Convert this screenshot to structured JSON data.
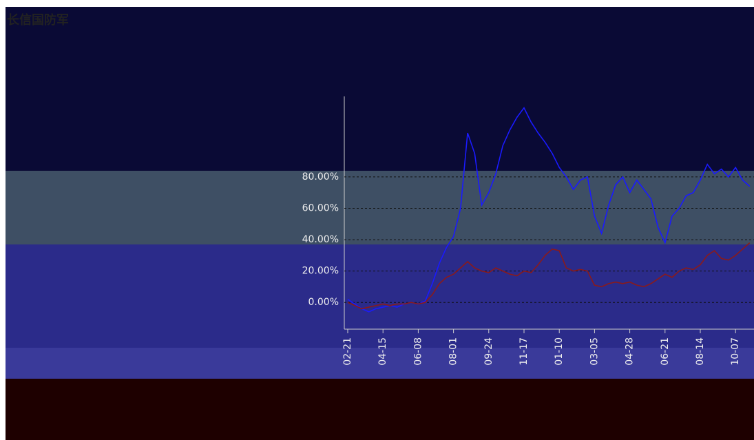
{
  "chart_data": {
    "type": "line",
    "title": "长信国防军",
    "categories": [
      "02-21",
      null,
      null,
      null,
      null,
      "04-15",
      null,
      null,
      null,
      null,
      "06-08",
      null,
      null,
      null,
      null,
      "08-01",
      null,
      null,
      null,
      null,
      "09-24",
      null,
      null,
      null,
      null,
      "11-17",
      null,
      null,
      null,
      null,
      "01-10",
      null,
      null,
      null,
      null,
      "03-05",
      null,
      null,
      null,
      null,
      "04-28",
      null,
      null,
      null,
      null,
      "06-21",
      null,
      null,
      null,
      null,
      "08-14",
      null,
      null,
      null,
      null,
      "10-07",
      null,
      null
    ],
    "series": [
      {
        "color": "#1a1aff",
        "values": [
          2,
          -1,
          -4,
          -6,
          -4,
          -3,
          -2,
          -3,
          -1,
          0,
          -1,
          1,
          12,
          25,
          35,
          42,
          60,
          108,
          95,
          62,
          70,
          82,
          100,
          110,
          118,
          124,
          115,
          108,
          102,
          95,
          86,
          80,
          72,
          78,
          80,
          55,
          44,
          62,
          75,
          80,
          70,
          78,
          72,
          66,
          48,
          38,
          55,
          60,
          68,
          70,
          78,
          88,
          82,
          85,
          80,
          86,
          78,
          74
        ]
      },
      {
        "color": "#8b1a1a",
        "values": [
          0,
          -2,
          -4,
          -3,
          -2,
          -1,
          -2,
          -1,
          -1,
          0,
          -1,
          0,
          5,
          12,
          16,
          18,
          22,
          26,
          22,
          20,
          19,
          22,
          20,
          18,
          17,
          20,
          19,
          24,
          30,
          34,
          33,
          22,
          20,
          21,
          20,
          11,
          10,
          12,
          13,
          12,
          13,
          11,
          10,
          12,
          15,
          18,
          16,
          20,
          22,
          21,
          24,
          30,
          33,
          28,
          27,
          30,
          34,
          38
        ]
      }
    ],
    "ylim": [
      -10,
      130
    ],
    "yticks": [
      {
        "value": 0,
        "label": "0.00%"
      },
      {
        "value": 20,
        "label": "20.00%"
      },
      {
        "value": 40,
        "label": "40.00%"
      },
      {
        "value": 60,
        "label": "60.00%"
      },
      {
        "value": 80,
        "label": "80.00%"
      }
    ],
    "grid": true
  }
}
